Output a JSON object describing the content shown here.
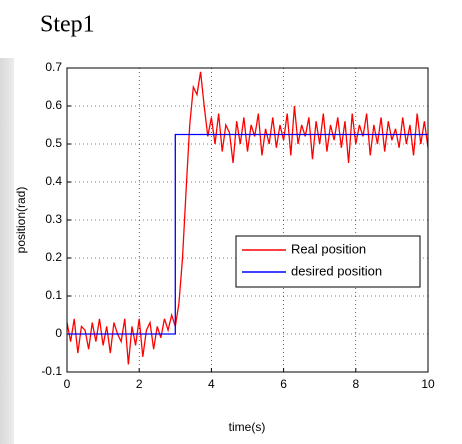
{
  "chart_data": {
    "type": "line",
    "title": "Step1",
    "xlabel": "time(s)",
    "ylabel": "position(rad)",
    "xlim": [
      0,
      10
    ],
    "xticks": [
      0,
      2,
      4,
      6,
      8,
      10
    ],
    "ylim": [
      -0.1,
      0.7
    ],
    "yticks": [
      -0.1,
      0,
      0.1,
      0.2,
      0.3,
      0.4,
      0.5,
      0.6,
      0.7
    ],
    "grid": true,
    "legend": "right",
    "series": [
      {
        "name": "Real position",
        "color": "#ff0000",
        "x": [
          0,
          0.1,
          0.2,
          0.3,
          0.4,
          0.5,
          0.6,
          0.7,
          0.8,
          0.9,
          1,
          1.1,
          1.2,
          1.3,
          1.4,
          1.5,
          1.6,
          1.7,
          1.8,
          1.9,
          2,
          2.1,
          2.2,
          2.3,
          2.4,
          2.5,
          2.6,
          2.7,
          2.8,
          2.9,
          3,
          3.1,
          3.2,
          3.3,
          3.4,
          3.5,
          3.6,
          3.7,
          3.8,
          3.9,
          4,
          4.1,
          4.2,
          4.3,
          4.4,
          4.5,
          4.6,
          4.7,
          4.8,
          4.9,
          5,
          5.1,
          5.2,
          5.3,
          5.4,
          5.5,
          5.6,
          5.7,
          5.8,
          5.9,
          6,
          6.1,
          6.2,
          6.3,
          6.4,
          6.5,
          6.6,
          6.7,
          6.8,
          6.9,
          7,
          7.1,
          7.2,
          7.3,
          7.4,
          7.5,
          7.6,
          7.7,
          7.8,
          7.9,
          8,
          8.1,
          8.2,
          8.3,
          8.4,
          8.5,
          8.6,
          8.7,
          8.8,
          8.9,
          9,
          9.1,
          9.2,
          9.3,
          9.4,
          9.5,
          9.6,
          9.7,
          9.8,
          9.9,
          10
        ],
        "values": [
          0.03,
          -0.02,
          0.04,
          -0.05,
          0.02,
          0.01,
          -0.04,
          0.03,
          -0.02,
          0.04,
          -0.03,
          0.02,
          -0.05,
          0.03,
          0,
          -0.02,
          0.04,
          -0.08,
          0.02,
          -0.03,
          0.04,
          -0.06,
          0.01,
          0.03,
          -0.04,
          0.02,
          -0.01,
          0.04,
          0.01,
          0.05,
          0.02,
          0.08,
          0.2,
          0.38,
          0.55,
          0.65,
          0.63,
          0.69,
          0.6,
          0.52,
          0.57,
          0.5,
          0.58,
          0.48,
          0.55,
          0.53,
          0.45,
          0.56,
          0.5,
          0.57,
          0.48,
          0.55,
          0.52,
          0.58,
          0.47,
          0.54,
          0.5,
          0.57,
          0.49,
          0.55,
          0.51,
          0.58,
          0.47,
          0.6,
          0.5,
          0.55,
          0.52,
          0.57,
          0.46,
          0.56,
          0.5,
          0.58,
          0.48,
          0.55,
          0.51,
          0.57,
          0.49,
          0.56,
          0.45,
          0.58,
          0.5,
          0.55,
          0.52,
          0.58,
          0.47,
          0.55,
          0.5,
          0.57,
          0.48,
          0.56,
          0.51,
          0.54,
          0.49,
          0.57,
          0.5,
          0.55,
          0.47,
          0.58,
          0.5,
          0.56,
          0.49
        ]
      },
      {
        "name": "desired position",
        "color": "#0000ff",
        "x": [
          0,
          3,
          3,
          10
        ],
        "values": [
          0,
          0,
          0.525,
          0.525
        ]
      }
    ]
  }
}
